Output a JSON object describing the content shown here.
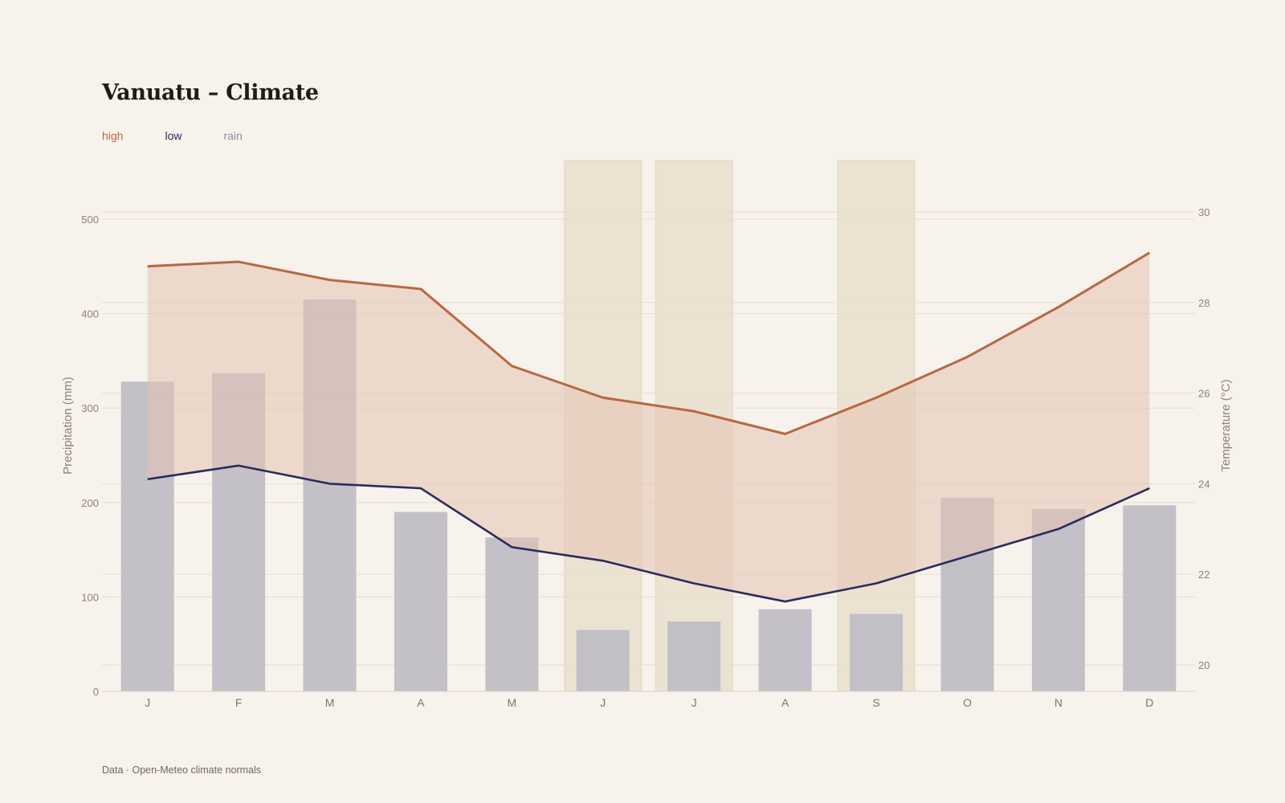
{
  "colors": {
    "background": "#f7f2eb",
    "high": "#b86744",
    "low": "#2c2a5c",
    "rain": "#8f8aa0",
    "rain_bar": "#c0bdc6",
    "band_area": "#e6c3b2",
    "highlight": "#ece2d2",
    "grid": "#e7ded3"
  },
  "chart_data": {
    "type": "bar",
    "title": "Vanuatu – Climate",
    "categories": [
      "J",
      "F",
      "M",
      "A",
      "M",
      "J",
      "J",
      "A",
      "S",
      "O",
      "N",
      "D"
    ],
    "legend": {
      "placement": "top-left",
      "items": [
        "high",
        "low",
        "rain"
      ]
    },
    "grid": true,
    "highlighted_categories": [
      5,
      6,
      8
    ],
    "y_left": {
      "label": "Precipitation (mm)",
      "range": [
        0,
        500
      ],
      "ticks": [
        0,
        100,
        200,
        300,
        400,
        500
      ]
    },
    "y_right": {
      "label": "Temperature (°C)",
      "range": [
        19.4,
        30.5
      ],
      "ticks": [
        20,
        22,
        24,
        26,
        28,
        30
      ]
    },
    "series": [
      {
        "name": "rain",
        "type": "bar",
        "axis": "left",
        "values": [
          328,
          337,
          415,
          190,
          163,
          65,
          74,
          87,
          82,
          205,
          193,
          197
        ]
      },
      {
        "name": "high",
        "type": "line",
        "axis": "right",
        "values": [
          28.8,
          28.9,
          28.5,
          28.3,
          26.6,
          25.9,
          25.6,
          25.1,
          25.9,
          26.8,
          27.9,
          29.1
        ]
      },
      {
        "name": "low",
        "type": "line",
        "axis": "right",
        "values": [
          24.1,
          24.4,
          24.0,
          23.9,
          22.6,
          22.3,
          21.8,
          21.4,
          21.8,
          22.4,
          23.0,
          23.9
        ]
      }
    ],
    "source": "Data · Open-Meteo climate normals"
  }
}
